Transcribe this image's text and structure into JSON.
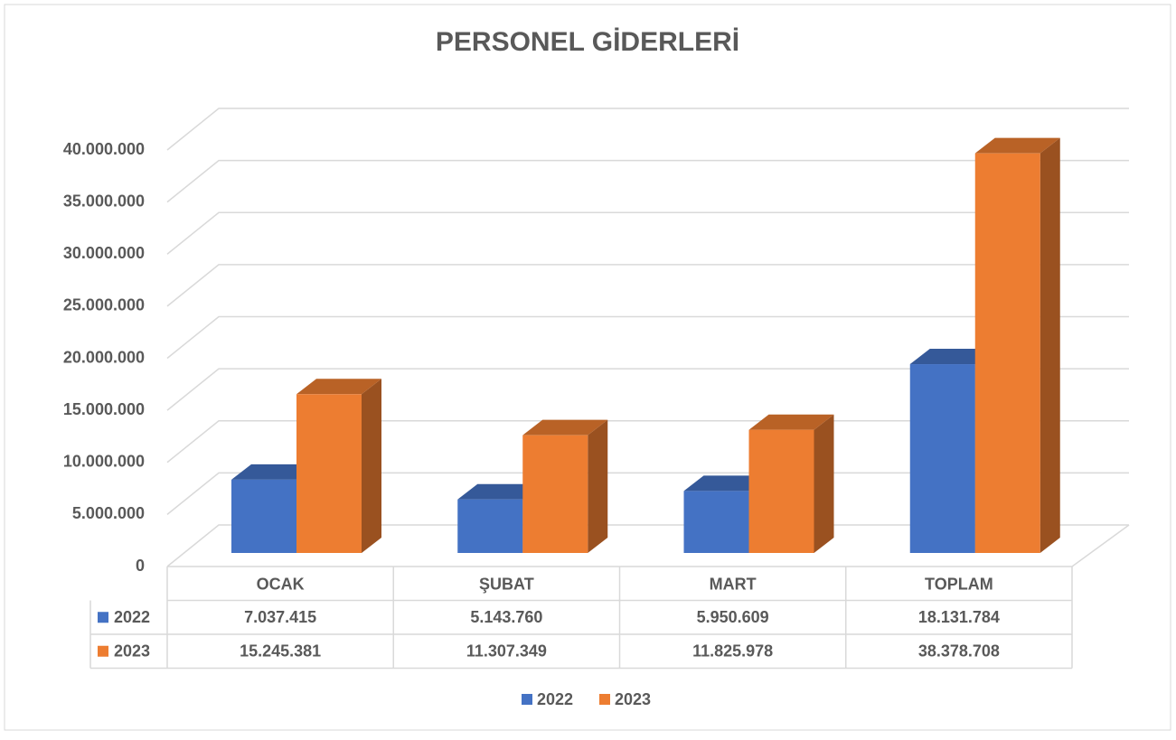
{
  "chart_data": {
    "type": "bar3d",
    "title": "PERSONEL GİDERLERİ",
    "categories": [
      "OCAK",
      "ŞUBAT",
      "MART",
      "TOPLAM"
    ],
    "series": [
      {
        "name": "2022",
        "color": "#4472c4",
        "values": [
          7037415,
          5143760,
          5950609,
          18131784
        ],
        "value_labels": [
          "7.037.415",
          "5.143.760",
          "5.950.609",
          "18.131.784"
        ]
      },
      {
        "name": "2023",
        "color": "#ed7d31",
        "values": [
          15245381,
          11307349,
          11825978,
          38378708
        ],
        "value_labels": [
          "15.245.381",
          "11.307.349",
          "11.825.978",
          "38.378.708"
        ]
      }
    ],
    "ylim": [
      0,
      40000000
    ],
    "yticks": [
      0,
      {
        "value": 5000000,
        "label": "5.000.000"
      },
      {
        "value": 10000000,
        "label": "10.000.000"
      },
      {
        "value": 15000000,
        "label": "15.000.000"
      },
      {
        "value": 20000000,
        "label": "20.000.000"
      },
      {
        "value": 25000000,
        "label": "25.000.000"
      },
      {
        "value": 30000000,
        "label": "30.000.000"
      },
      {
        "value": 35000000,
        "label": "35.000.000"
      },
      {
        "value": 40000000,
        "label": "40.000.000"
      }
    ],
    "grid": true,
    "legend": "bottom",
    "data_table": true
  }
}
